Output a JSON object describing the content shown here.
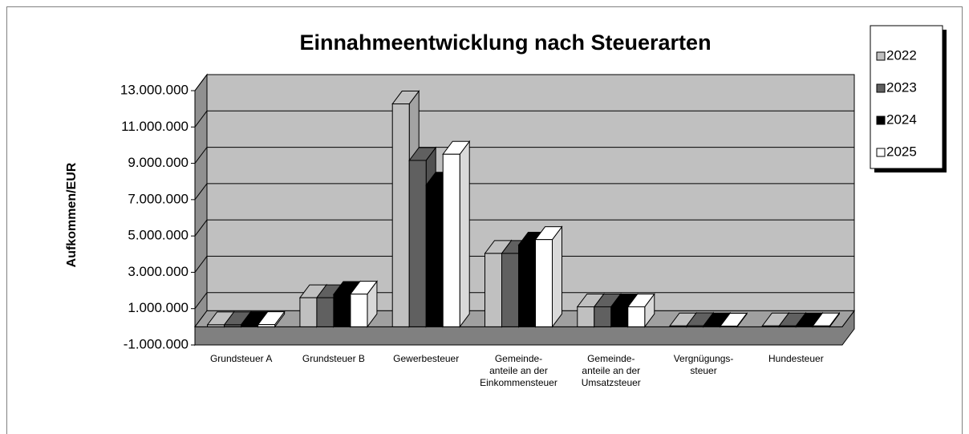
{
  "chart_data": {
    "type": "bar3d",
    "title": "Einnahmeentwicklung nach Steuerarten",
    "y_label": "Aufkommen/EUR",
    "categories": [
      "Grundsteuer A",
      "Grundsteuer B",
      "Gewerbesteuer",
      "Gemeinde-\nanteile an der\nEinkommensteuer",
      "Gemeinde-\nanteile an der\nUmsatzsteuer",
      "Vergnügungs-\nsteuer",
      "Hundesteuer"
    ],
    "series": [
      {
        "name": "2022",
        "color": "#c0c0c0",
        "values": [
          110000,
          1600000,
          12270000,
          4040000,
          1100000,
          50000,
          50000
        ]
      },
      {
        "name": "2023",
        "color": "#606060",
        "values": [
          110000,
          1600000,
          9160000,
          4040000,
          1100000,
          60000,
          50000
        ]
      },
      {
        "name": "2024",
        "color": "#000000",
        "values": [
          120000,
          1780000,
          7800000,
          4500000,
          1100000,
          50000,
          50000
        ]
      },
      {
        "name": "2025",
        "color": "#ffffff",
        "values": [
          120000,
          1800000,
          9500000,
          4800000,
          1100000,
          40000,
          50000
        ]
      }
    ],
    "ylim": [
      -1000000,
      13000000
    ],
    "yticks": [
      {
        "value": -1000000,
        "label": "-1.000.000"
      },
      {
        "value": 1000000,
        "label": "1.000.000"
      },
      {
        "value": 3000000,
        "label": "3.000.000"
      },
      {
        "value": 5000000,
        "label": "5.000.000"
      },
      {
        "value": 7000000,
        "label": "7.000.000"
      },
      {
        "value": 9000000,
        "label": "9.000.000"
      },
      {
        "value": 11000000,
        "label": "11.000.000"
      },
      {
        "value": 13000000,
        "label": "13.000.000"
      }
    ],
    "grid": true,
    "legend": "right"
  }
}
